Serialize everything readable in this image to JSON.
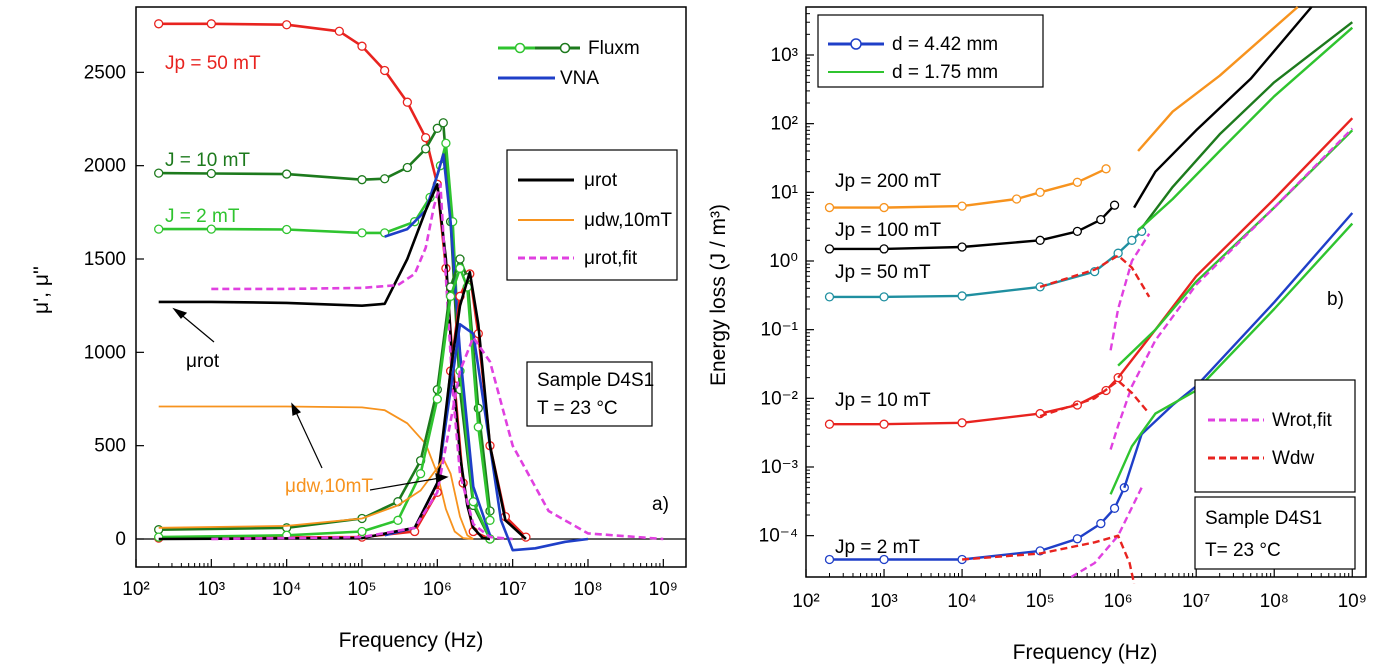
{
  "chart_data": [
    {
      "panel": "a)",
      "type": "line",
      "xlabel": "Frequency (Hz)",
      "ylabel": "μ', μ''",
      "xscale": "log",
      "xlim": [
        100,
        2000000000
      ],
      "ylim": [
        -150,
        2850
      ],
      "xticks": [
        "10²",
        "10³",
        "10⁴",
        "10⁵",
        "10⁶",
        "10⁷",
        "10⁸",
        "10⁹"
      ],
      "yticks": [
        "0",
        "500",
        "1000",
        "1500",
        "2000",
        "2500"
      ],
      "legend": {
        "placement": "top-right",
        "entries": [
          "Fluxm",
          "VNA",
          "μrot",
          "μdw,10mT",
          "μrot,fit"
        ]
      },
      "annotations": {
        "jp50": "Jp = 50 mT",
        "j10": "J = 10 mT",
        "j2": "J = 2 mT",
        "mu_rot": "μrot",
        "mu_dw": "μdw,10mT",
        "sample_box": [
          "Sample D4S1",
          "T = 23 °C"
        ]
      },
      "series": [
        {
          "name": "Jp = 50 mT (μ')",
          "color": "#e8231f",
          "x": [
            200,
            1000,
            10000,
            50000,
            100000,
            200000,
            400000,
            700000,
            1000000,
            1300000,
            1700000,
            2200000,
            3000000,
            5000000
          ],
          "y": [
            2760,
            2760,
            2755,
            2720,
            2640,
            2510,
            2340,
            2150,
            1900,
            1450,
            820,
            300,
            40,
            0
          ]
        },
        {
          "name": "J = 10 mT (μ')",
          "color": "#1d7a1d",
          "x": [
            200,
            1000,
            10000,
            100000,
            200000,
            400000,
            700000,
            1000000,
            1200000,
            1500000,
            2000000,
            3000000,
            5000000
          ],
          "y": [
            1960,
            1958,
            1955,
            1925,
            1930,
            1990,
            2090,
            2200,
            2230,
            1700,
            800,
            180,
            0
          ]
        },
        {
          "name": "J = 2 mT (μ')",
          "color": "#2fc42f",
          "x": [
            200,
            1000,
            10000,
            100000,
            200000,
            500000,
            800000,
            1100000,
            1300000,
            1600000,
            2000000,
            3000000,
            5000000
          ],
          "y": [
            1660,
            1660,
            1658,
            1640,
            1640,
            1700,
            1830,
            2000,
            2120,
            1700,
            900,
            200,
            0
          ]
        },
        {
          "name": "VNA (μ')",
          "color": "#1f3fc8",
          "x": [
            200000,
            400000,
            700000,
            1000000,
            1200000,
            1500000,
            2000000,
            3000000,
            5000000
          ],
          "y": [
            1620,
            1660,
            1760,
            1950,
            2060,
            1700,
            1000,
            280,
            20
          ]
        },
        {
          "name": "μrot",
          "color": "#000000",
          "x": [
            200,
            1000,
            10000,
            100000,
            200000,
            400000,
            700000,
            1000000,
            1300000,
            1600000,
            2000000,
            2500000,
            3000000,
            4000000,
            5000000
          ],
          "y": [
            1270,
            1270,
            1265,
            1250,
            1260,
            1500,
            1760,
            1900,
            1500,
            900,
            450,
            180,
            60,
            5,
            0
          ]
        },
        {
          "name": "μdw,10mT",
          "color": "#f7931e",
          "x": [
            200,
            1000,
            10000,
            100000,
            200000,
            400000,
            700000,
            1000000,
            1300000,
            1700000,
            2200000,
            3000000
          ],
          "y": [
            710,
            710,
            710,
            705,
            690,
            620,
            510,
            350,
            160,
            40,
            5,
            0
          ]
        },
        {
          "name": "μrot,fit",
          "color": "#e040e0",
          "x": [
            1000,
            10000,
            100000,
            300000,
            500000,
            700000,
            900000,
            1100000,
            1300000,
            1600000,
            2000000,
            3000000,
            5000000,
            10000000
          ],
          "y": [
            1340,
            1340,
            1345,
            1360,
            1420,
            1560,
            1780,
            1900,
            1400,
            800,
            350,
            80,
            10,
            0
          ]
        },
        {
          "name": "Jp = 50 mT (μ'')",
          "color": "#e8231f",
          "x": [
            200,
            100000,
            500000,
            1000000,
            1500000,
            2000000,
            2700000,
            3500000,
            5000000,
            8000000,
            15000000
          ],
          "y": [
            5,
            10,
            40,
            250,
            900,
            1300,
            1420,
            1100,
            500,
            120,
            10
          ]
        },
        {
          "name": "J = 10 mT (μ'')",
          "color": "#1d7a1d",
          "x": [
            200,
            10000,
            100000,
            300000,
            600000,
            1000000,
            1500000,
            2000000,
            2500000,
            3500000,
            5000000
          ],
          "y": [
            50,
            60,
            110,
            200,
            420,
            800,
            1350,
            1500,
            1400,
            700,
            150
          ]
        },
        {
          "name": "J = 2 mT (μ'')",
          "color": "#2fc42f",
          "x": [
            200,
            10000,
            100000,
            300000,
            600000,
            1000000,
            1500000,
            2000000,
            2500000,
            3500000,
            5000000
          ],
          "y": [
            10,
            20,
            40,
            100,
            350,
            750,
            1300,
            1450,
            1350,
            600,
            100
          ]
        },
        {
          "name": "VNA (μ'')",
          "color": "#1f3fc8",
          "x": [
            200000,
            500000,
            1000000,
            1500000,
            2000000,
            3000000,
            5000000,
            7000000,
            10000000,
            20000000,
            50000000,
            100000000
          ],
          "y": [
            20,
            60,
            300,
            800,
            1150,
            1100,
            500,
            100,
            -60,
            -50,
            -15,
            0
          ]
        },
        {
          "name": "μrot'' (black)",
          "color": "#000000",
          "x": [
            200,
            100000,
            500000,
            1000000,
            1500000,
            2000000,
            2700000,
            3500000,
            5000000,
            8000000,
            15000000
          ],
          "y": [
            0,
            5,
            60,
            300,
            900,
            1250,
            1430,
            1150,
            500,
            100,
            0
          ]
        },
        {
          "name": "μdw'' (orange)",
          "color": "#f7931e",
          "x": [
            200,
            10000,
            100000,
            300000,
            600000,
            1000000,
            1200000,
            1500000,
            2000000,
            2500000,
            3000000
          ],
          "y": [
            60,
            70,
            110,
            180,
            260,
            380,
            430,
            350,
            120,
            20,
            0
          ]
        },
        {
          "name": "μrot,fit'' (magenta)",
          "color": "#e040e0",
          "x": [
            1000,
            100000,
            500000,
            1000000,
            2000000,
            3000000,
            5000000,
            10000000,
            30000000,
            100000000,
            1000000000
          ],
          "y": [
            0,
            10,
            60,
            250,
            900,
            1080,
            950,
            500,
            150,
            30,
            0
          ]
        }
      ]
    },
    {
      "panel": "b)",
      "type": "line",
      "xlabel": "Frequency (Hz)",
      "ylabel": "Energy loss (J / m³)",
      "xscale": "log",
      "yscale": "log",
      "xlim": [
        100,
        1500000000
      ],
      "ylim": [
        2.5e-05,
        5000
      ],
      "xticks": [
        "10²",
        "10³",
        "10⁴",
        "10⁵",
        "10⁶",
        "10⁷",
        "10⁸",
        "10⁹"
      ],
      "yticks": [
        "10⁻⁴",
        "10⁻³",
        "10⁻²",
        "10⁻¹",
        "10⁰",
        "10¹",
        "10²",
        "10³"
      ],
      "legend": {
        "placement": "top-left and bottom-right",
        "entries": [
          "d = 4.42 mm",
          "d = 1.75 mm",
          "Wrot,fit",
          "Wdw"
        ]
      },
      "annotations": {
        "j200": "Jp = 200 mT",
        "j100": "Jp = 100 mT",
        "j50": "Jp = 50 mT",
        "j10": "Jp = 10 mT",
        "j2": "Jp = 2 mT",
        "panel_label": "b)",
        "sample_box": [
          "Sample D4S1",
          "T= 23 °C"
        ]
      },
      "series": [
        {
          "name": "Jp = 200 mT",
          "color": "#f7931e",
          "x": [
            200,
            1000,
            10000,
            50000,
            100000,
            300000,
            700000
          ],
          "y": [
            6,
            6,
            6.3,
            8,
            10,
            14,
            22
          ]
        },
        {
          "name": "Jp = 100 mT",
          "color": "#000000",
          "x": [
            200,
            1000,
            10000,
            100000,
            300000,
            600000,
            900000
          ],
          "y": [
            1.5,
            1.5,
            1.6,
            2,
            2.7,
            4,
            6.5
          ]
        },
        {
          "name": "Jp = 50 mT",
          "color": "#1f8fa0",
          "x": [
            200,
            1000,
            10000,
            100000,
            500000,
            1000000,
            1500000,
            2000000
          ],
          "y": [
            0.3,
            0.3,
            0.31,
            0.42,
            0.7,
            1.3,
            2,
            2.7
          ]
        },
        {
          "name": "Jp = 10 mT",
          "color": "#e8231f",
          "x": [
            200,
            1000,
            10000,
            100000,
            300000,
            700000,
            1000000
          ],
          "y": [
            0.0042,
            0.0042,
            0.0044,
            0.006,
            0.008,
            0.013,
            0.02
          ]
        },
        {
          "name": "Jp = 2 mT",
          "color": "#1f3fc8",
          "x": [
            200,
            1000,
            10000,
            100000,
            300000,
            600000,
            900000,
            1200000
          ],
          "y": [
            4.5e-05,
            4.5e-05,
            4.5e-05,
            6e-05,
            9e-05,
            0.00015,
            0.00025,
            0.0005
          ]
        },
        {
          "name": "d = 4.42 mm (200 mT HF)",
          "color": "#f7931e",
          "x": [
            1800000,
            5000000,
            20000000,
            100000000,
            200000000
          ],
          "y": [
            40,
            150,
            500,
            2500,
            5000
          ]
        },
        {
          "name": "d = 4.42 mm (100 mT HF)",
          "color": "#000000",
          "x": [
            1600000,
            3000000,
            10000000,
            50000000,
            300000000
          ],
          "y": [
            6,
            20,
            80,
            450,
            5000
          ]
        },
        {
          "name": "d = 4.42 mm (50 mT HF)",
          "color": "#1d7a1d",
          "x": [
            2000000,
            5000000,
            20000000,
            100000000,
            1000000000
          ],
          "y": [
            3,
            12,
            70,
            400,
            3000
          ]
        },
        {
          "name": "d = 4.42 mm (10 mT HF)",
          "color": "#e8231f",
          "x": [
            1000000,
            3000000,
            10000000,
            100000000,
            1000000000
          ],
          "y": [
            0.02,
            0.1,
            0.6,
            8,
            120
          ]
        },
        {
          "name": "d = 4.42 mm (2 mT HF)",
          "color": "#1f3fc8",
          "x": [
            1200000,
            2000000,
            5000000,
            10000000,
            100000000,
            1000000000
          ],
          "y": [
            0.0005,
            0.003,
            0.008,
            0.015,
            0.25,
            5
          ]
        },
        {
          "name": "d = 1.75 mm (2 mT)",
          "color": "#2fc42f",
          "x": [
            800000,
            1500000,
            3000000,
            10000000,
            100000000,
            1000000000
          ],
          "y": [
            0.0004,
            0.002,
            0.006,
            0.013,
            0.2,
            3.5
          ]
        },
        {
          "name": "d = 1.75 mm (10 mT)",
          "color": "#2fc42f",
          "x": [
            1000000,
            3000000,
            10000000,
            100000000,
            1000000000
          ],
          "y": [
            0.03,
            0.1,
            0.5,
            6,
            80
          ]
        },
        {
          "name": "d = 1.75 mm (50 mT)",
          "color": "#2fc42f",
          "x": [
            1800000,
            5000000,
            20000000,
            100000000,
            1000000000
          ],
          "y": [
            2.8,
            8,
            40,
            250,
            2500
          ]
        },
        {
          "name": "Wrot,fit (10 mT)",
          "color": "#e040e0",
          "x": [
            800000,
            1000000,
            1500000,
            3000000,
            10000000,
            100000000,
            1000000000
          ],
          "y": [
            0.0018,
            0.004,
            0.015,
            0.07,
            0.45,
            6,
            85
          ]
        },
        {
          "name": "Wrot,fit (50 mT)",
          "color": "#e040e0",
          "x": [
            800000,
            1000000,
            1500000,
            2500000
          ],
          "y": [
            0.05,
            0.2,
            1,
            2.5
          ]
        },
        {
          "name": "Wrot,fit (2 mT)",
          "color": "#e040e0",
          "x": [
            250000,
            500000,
            1000000,
            2000000
          ],
          "y": [
            2.5e-05,
            4e-05,
            0.0001,
            0.0005
          ]
        },
        {
          "name": "Wdw (10 mT)",
          "color": "#e8231f",
          "x": [
            100000,
            500000,
            1000000,
            1500000,
            2500000
          ],
          "y": [
            0.0055,
            0.01,
            0.018,
            0.012,
            0.006
          ]
        },
        {
          "name": "Wdw (50 mT)",
          "color": "#e8231f",
          "x": [
            100000,
            500000,
            1000000,
            1500000,
            2500000
          ],
          "y": [
            0.42,
            0.75,
            1.2,
            0.8,
            0.3
          ]
        },
        {
          "name": "Wdw (2 mT)",
          "color": "#e8231f",
          "x": [
            10000,
            100000,
            500000,
            1000000,
            1400000,
            1600000
          ],
          "y": [
            4.5e-05,
            5.5e-05,
            8e-05,
            0.0001,
            4e-05,
            2e-05
          ]
        }
      ]
    }
  ]
}
